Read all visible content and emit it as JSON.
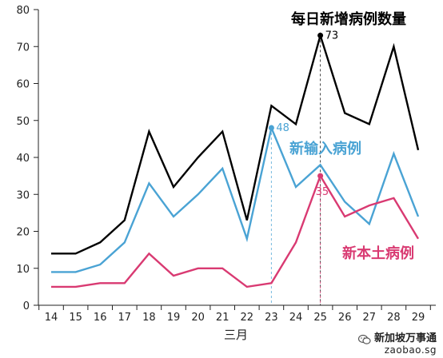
{
  "chart_data": {
    "type": "line",
    "title": "每日新增病例数量",
    "xlabel": "三月",
    "ylabel": "",
    "ylim": [
      0,
      80
    ],
    "yticks": [
      0,
      10,
      20,
      30,
      40,
      50,
      60,
      70,
      80
    ],
    "categories": [
      "14",
      "15",
      "16",
      "17",
      "18",
      "19",
      "20",
      "21",
      "22",
      "23",
      "24",
      "25",
      "26",
      "27",
      "28",
      "29"
    ],
    "grid": false,
    "series": [
      {
        "name": "每日新增病例数量",
        "color": "#000000",
        "values": [
          14,
          14,
          17,
          23,
          47,
          32,
          40,
          47,
          23,
          54,
          49,
          73,
          52,
          49,
          70,
          42
        ]
      },
      {
        "name": "新输入病例",
        "color": "#4aa3d4",
        "values": [
          9,
          9,
          11,
          17,
          33,
          24,
          30,
          37,
          18,
          48,
          32,
          38,
          28,
          22,
          41,
          24
        ]
      },
      {
        "name": "新本土病例",
        "color": "#d93a72",
        "values": [
          5,
          5,
          6,
          6,
          14,
          8,
          10,
          10,
          5,
          6,
          17,
          35,
          24,
          27,
          29,
          18
        ]
      }
    ],
    "annotations": [
      {
        "series": 0,
        "category": "25",
        "value": 73,
        "label": "73"
      },
      {
        "series": 1,
        "category": "23",
        "value": 48,
        "label": "48"
      },
      {
        "series": 2,
        "category": "25",
        "value": 35,
        "label": "35"
      }
    ]
  },
  "watermark": {
    "brand": "新加坡万事通",
    "url": "zaobao.sg"
  }
}
